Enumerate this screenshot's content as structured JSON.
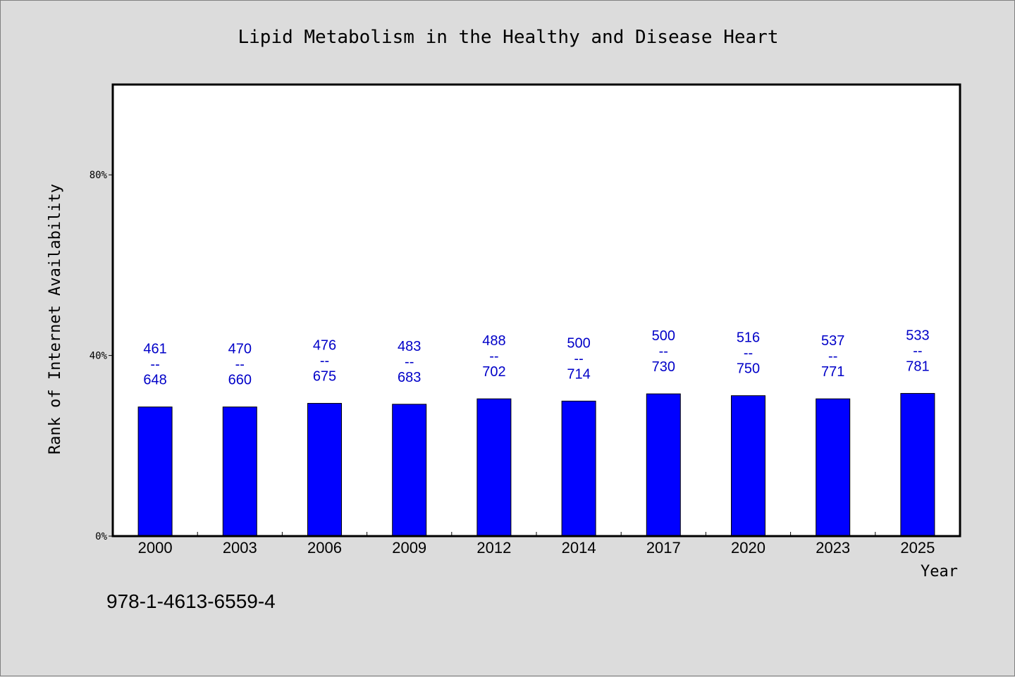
{
  "chart_data": {
    "type": "bar",
    "title": "Lipid Metabolism in the Healthy and Disease Heart",
    "xlabel": "Year",
    "ylabel": "Rank of Internet Availability",
    "categories": [
      "2000",
      "2003",
      "2006",
      "2009",
      "2012",
      "2014",
      "2017",
      "2020",
      "2023",
      "2025"
    ],
    "values": [
      28.6,
      28.6,
      29.4,
      29.2,
      30.4,
      29.9,
      31.5,
      31.1,
      30.4,
      31.6
    ],
    "value_unit": "%",
    "data_labels": [
      {
        "top": "461",
        "sep": "--",
        "bottom": "648"
      },
      {
        "top": "470",
        "sep": "--",
        "bottom": "660"
      },
      {
        "top": "476",
        "sep": "--",
        "bottom": "675"
      },
      {
        "top": "483",
        "sep": "--",
        "bottom": "683"
      },
      {
        "top": "488",
        "sep": "--",
        "bottom": "702"
      },
      {
        "top": "500",
        "sep": "--",
        "bottom": "714"
      },
      {
        "top": "500",
        "sep": "--",
        "bottom": "730"
      },
      {
        "top": "516",
        "sep": "--",
        "bottom": "750"
      },
      {
        "top": "537",
        "sep": "--",
        "bottom": "771"
      },
      {
        "top": "533",
        "sep": "--",
        "bottom": "781"
      }
    ],
    "ylim": [
      0,
      100
    ],
    "yticks": [
      {
        "value": 0,
        "label": "0%"
      },
      {
        "value": 40,
        "label": "40%"
      },
      {
        "value": 80,
        "label": "80%"
      }
    ],
    "grid": false,
    "colors": {
      "bar": "#0000ff",
      "label": "#0000c8",
      "background": "#dcdcdc",
      "plot": "#ffffff"
    }
  },
  "footer": {
    "isbn": "978-1-4613-6559-4"
  }
}
